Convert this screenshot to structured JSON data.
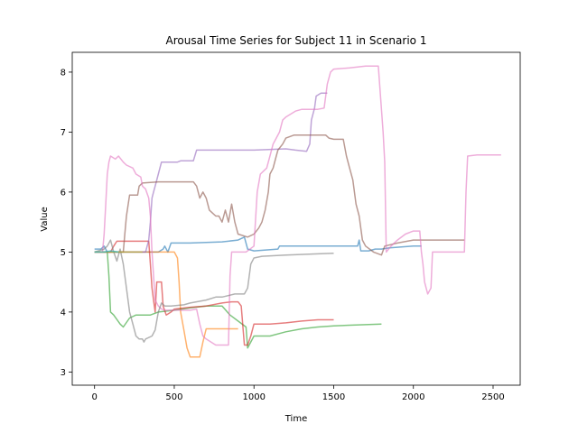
{
  "chart_data": {
    "type": "line",
    "title": "Arousal Time Series for Subject 11 in Scenario 1",
    "xlabel": "Time",
    "ylabel": "Value",
    "xlim": [
      -140,
      2670
    ],
    "ylim": [
      2.78,
      8.33
    ],
    "xticks": [
      0,
      500,
      1000,
      1500,
      2000,
      2500
    ],
    "yticks": [
      3,
      4,
      5,
      6,
      7,
      8
    ],
    "grid": false,
    "legend": "none",
    "series": [
      {
        "color": "#1f77b4",
        "points": [
          [
            0,
            5.05
          ],
          [
            40,
            5.05
          ],
          [
            60,
            5.1
          ],
          [
            80,
            5.0
          ],
          [
            150,
            5.0
          ],
          [
            300,
            5.0
          ],
          [
            400,
            5.0
          ],
          [
            430,
            5.05
          ],
          [
            440,
            5.1
          ],
          [
            460,
            5.0
          ],
          [
            480,
            5.15
          ],
          [
            600,
            5.15
          ],
          [
            800,
            5.17
          ],
          [
            900,
            5.2
          ],
          [
            940,
            5.25
          ],
          [
            960,
            5.05
          ],
          [
            1000,
            5.02
          ],
          [
            1150,
            5.05
          ],
          [
            1160,
            5.1
          ],
          [
            1400,
            5.1
          ],
          [
            1650,
            5.1
          ],
          [
            1660,
            5.2
          ],
          [
            1670,
            5.02
          ],
          [
            1720,
            5.02
          ],
          [
            1760,
            5.05
          ],
          [
            1800,
            5.05
          ],
          [
            1850,
            5.07
          ],
          [
            2000,
            5.1
          ],
          [
            2050,
            5.1
          ]
        ]
      },
      {
        "color": "#ff7f0e",
        "points": [
          [
            0,
            5.0
          ],
          [
            200,
            5.0
          ],
          [
            300,
            5.0
          ],
          [
            500,
            5.0
          ],
          [
            520,
            4.9
          ],
          [
            530,
            4.5
          ],
          [
            540,
            4.0
          ],
          [
            560,
            3.7
          ],
          [
            580,
            3.4
          ],
          [
            600,
            3.25
          ],
          [
            660,
            3.25
          ],
          [
            680,
            3.5
          ],
          [
            700,
            3.72
          ],
          [
            850,
            3.72
          ],
          [
            900,
            3.72
          ]
        ]
      },
      {
        "color": "#2ca02c",
        "points": [
          [
            0,
            5.0
          ],
          [
            80,
            5.0
          ],
          [
            90,
            4.6
          ],
          [
            100,
            4.0
          ],
          [
            120,
            3.95
          ],
          [
            160,
            3.8
          ],
          [
            180,
            3.75
          ],
          [
            220,
            3.9
          ],
          [
            260,
            3.95
          ],
          [
            300,
            3.95
          ],
          [
            350,
            3.95
          ],
          [
            400,
            4.0
          ],
          [
            500,
            4.03
          ],
          [
            600,
            4.07
          ],
          [
            700,
            4.1
          ],
          [
            800,
            4.1
          ],
          [
            850,
            3.95
          ],
          [
            900,
            3.85
          ],
          [
            950,
            3.75
          ],
          [
            960,
            3.4
          ],
          [
            980,
            3.5
          ],
          [
            1000,
            3.6
          ],
          [
            1100,
            3.6
          ],
          [
            1200,
            3.67
          ],
          [
            1300,
            3.72
          ],
          [
            1400,
            3.75
          ],
          [
            1500,
            3.77
          ],
          [
            1600,
            3.78
          ],
          [
            1800,
            3.8
          ]
        ]
      },
      {
        "color": "#d62728",
        "points": [
          [
            0,
            5.0
          ],
          [
            100,
            5.0
          ],
          [
            120,
            5.1
          ],
          [
            140,
            5.18
          ],
          [
            200,
            5.18
          ],
          [
            340,
            5.18
          ],
          [
            350,
            4.8
          ],
          [
            360,
            4.4
          ],
          [
            370,
            4.2
          ],
          [
            380,
            4.0
          ],
          [
            390,
            4.5
          ],
          [
            420,
            4.5
          ],
          [
            430,
            4.1
          ],
          [
            450,
            3.95
          ],
          [
            480,
            4.0
          ],
          [
            500,
            4.05
          ],
          [
            600,
            4.08
          ],
          [
            700,
            4.1
          ],
          [
            800,
            4.15
          ],
          [
            860,
            4.17
          ],
          [
            900,
            4.17
          ],
          [
            920,
            4.1
          ],
          [
            940,
            3.45
          ],
          [
            960,
            3.45
          ],
          [
            980,
            3.6
          ],
          [
            1000,
            3.8
          ],
          [
            1100,
            3.8
          ],
          [
            1200,
            3.82
          ],
          [
            1300,
            3.85
          ],
          [
            1400,
            3.87
          ],
          [
            1500,
            3.87
          ]
        ]
      },
      {
        "color": "#9467bd",
        "points": [
          [
            0,
            5.0
          ],
          [
            200,
            5.0
          ],
          [
            300,
            5.0
          ],
          [
            320,
            5.0
          ],
          [
            340,
            5.2
          ],
          [
            350,
            5.5
          ],
          [
            360,
            5.9
          ],
          [
            370,
            6.0
          ],
          [
            380,
            6.1
          ],
          [
            400,
            6.3
          ],
          [
            420,
            6.5
          ],
          [
            460,
            6.5
          ],
          [
            520,
            6.5
          ],
          [
            540,
            6.52
          ],
          [
            600,
            6.52
          ],
          [
            620,
            6.52
          ],
          [
            640,
            6.7
          ],
          [
            700,
            6.7
          ],
          [
            1000,
            6.7
          ],
          [
            1200,
            6.72
          ],
          [
            1260,
            6.7
          ],
          [
            1330,
            6.68
          ],
          [
            1350,
            6.8
          ],
          [
            1360,
            7.2
          ],
          [
            1380,
            7.4
          ],
          [
            1390,
            7.6
          ],
          [
            1420,
            7.65
          ],
          [
            1460,
            7.65
          ]
        ]
      },
      {
        "color": "#8c564b",
        "points": [
          [
            0,
            5.0
          ],
          [
            150,
            5.0
          ],
          [
            180,
            5.0
          ],
          [
            190,
            5.3
          ],
          [
            200,
            5.6
          ],
          [
            220,
            5.95
          ],
          [
            270,
            5.95
          ],
          [
            280,
            6.1
          ],
          [
            300,
            6.15
          ],
          [
            350,
            6.16
          ],
          [
            400,
            6.17
          ],
          [
            500,
            6.17
          ],
          [
            620,
            6.17
          ],
          [
            640,
            6.1
          ],
          [
            660,
            5.9
          ],
          [
            680,
            6.0
          ],
          [
            700,
            5.9
          ],
          [
            720,
            5.7
          ],
          [
            740,
            5.65
          ],
          [
            760,
            5.6
          ],
          [
            780,
            5.6
          ],
          [
            800,
            5.5
          ],
          [
            820,
            5.7
          ],
          [
            840,
            5.5
          ],
          [
            860,
            5.8
          ],
          [
            880,
            5.5
          ],
          [
            900,
            5.3
          ],
          [
            960,
            5.25
          ],
          [
            1000,
            5.3
          ],
          [
            1030,
            5.4
          ],
          [
            1050,
            5.5
          ],
          [
            1070,
            5.7
          ],
          [
            1090,
            6.0
          ],
          [
            1100,
            6.3
          ],
          [
            1120,
            6.4
          ],
          [
            1140,
            6.6
          ],
          [
            1150,
            6.7
          ],
          [
            1180,
            6.8
          ],
          [
            1200,
            6.9
          ],
          [
            1250,
            6.95
          ],
          [
            1450,
            6.95
          ],
          [
            1470,
            6.9
          ],
          [
            1500,
            6.88
          ],
          [
            1560,
            6.88
          ],
          [
            1580,
            6.6
          ],
          [
            1600,
            6.4
          ],
          [
            1620,
            6.2
          ],
          [
            1640,
            5.8
          ],
          [
            1660,
            5.6
          ],
          [
            1680,
            5.2
          ],
          [
            1700,
            5.1
          ],
          [
            1750,
            5.0
          ],
          [
            1800,
            4.95
          ],
          [
            1820,
            5.1
          ],
          [
            1900,
            5.15
          ],
          [
            2000,
            5.2
          ],
          [
            2100,
            5.2
          ],
          [
            2320,
            5.2
          ]
        ]
      },
      {
        "color": "#e377c2",
        "points": [
          [
            0,
            5.0
          ],
          [
            50,
            5.0
          ],
          [
            60,
            5.3
          ],
          [
            70,
            5.8
          ],
          [
            80,
            6.3
          ],
          [
            90,
            6.5
          ],
          [
            100,
            6.6
          ],
          [
            130,
            6.55
          ],
          [
            150,
            6.6
          ],
          [
            180,
            6.5
          ],
          [
            200,
            6.45
          ],
          [
            240,
            6.4
          ],
          [
            260,
            6.3
          ],
          [
            290,
            6.25
          ],
          [
            300,
            6.1
          ],
          [
            320,
            6.05
          ],
          [
            340,
            5.9
          ],
          [
            350,
            5.6
          ],
          [
            360,
            5.0
          ],
          [
            380,
            4.2
          ],
          [
            400,
            4.1
          ],
          [
            420,
            4.05
          ],
          [
            440,
            4.03
          ],
          [
            500,
            4.03
          ],
          [
            600,
            4.03
          ],
          [
            640,
            4.05
          ],
          [
            660,
            3.8
          ],
          [
            680,
            3.6
          ],
          [
            700,
            3.55
          ],
          [
            760,
            3.45
          ],
          [
            840,
            3.45
          ],
          [
            850,
            4.6
          ],
          [
            860,
            5.0
          ],
          [
            950,
            5.0
          ],
          [
            1000,
            5.1
          ],
          [
            1020,
            6.0
          ],
          [
            1040,
            6.3
          ],
          [
            1080,
            6.4
          ],
          [
            1100,
            6.6
          ],
          [
            1120,
            6.8
          ],
          [
            1140,
            6.9
          ],
          [
            1160,
            7.0
          ],
          [
            1180,
            7.2
          ],
          [
            1200,
            7.25
          ],
          [
            1260,
            7.35
          ],
          [
            1300,
            7.38
          ],
          [
            1400,
            7.38
          ],
          [
            1440,
            7.4
          ],
          [
            1460,
            7.8
          ],
          [
            1480,
            8.0
          ],
          [
            1500,
            8.05
          ],
          [
            1600,
            8.07
          ],
          [
            1700,
            8.1
          ],
          [
            1780,
            8.1
          ],
          [
            1810,
            7.0
          ],
          [
            1820,
            6.5
          ],
          [
            1830,
            5.0
          ],
          [
            1860,
            5.1
          ],
          [
            1900,
            5.2
          ],
          [
            1950,
            5.3
          ],
          [
            2000,
            5.35
          ],
          [
            2040,
            5.35
          ],
          [
            2050,
            5.0
          ],
          [
            2060,
            4.8
          ],
          [
            2070,
            4.5
          ],
          [
            2090,
            4.3
          ],
          [
            2110,
            4.4
          ],
          [
            2120,
            5.0
          ],
          [
            2150,
            5.0
          ],
          [
            2200,
            5.0
          ],
          [
            2300,
            5.0
          ],
          [
            2320,
            5.0
          ],
          [
            2330,
            6.0
          ],
          [
            2340,
            6.6
          ],
          [
            2400,
            6.62
          ],
          [
            2450,
            6.62
          ],
          [
            2550,
            6.62
          ]
        ]
      },
      {
        "color": "#7f7f7f",
        "points": [
          [
            0,
            5.0
          ],
          [
            60,
            5.05
          ],
          [
            80,
            5.1
          ],
          [
            100,
            5.2
          ],
          [
            120,
            5.0
          ],
          [
            140,
            4.85
          ],
          [
            160,
            5.05
          ],
          [
            180,
            4.8
          ],
          [
            200,
            4.4
          ],
          [
            220,
            4.0
          ],
          [
            240,
            3.8
          ],
          [
            260,
            3.6
          ],
          [
            280,
            3.55
          ],
          [
            300,
            3.55
          ],
          [
            310,
            3.5
          ],
          [
            320,
            3.55
          ],
          [
            360,
            3.6
          ],
          [
            380,
            3.7
          ],
          [
            400,
            4.0
          ],
          [
            420,
            4.15
          ],
          [
            440,
            4.1
          ],
          [
            480,
            4.1
          ],
          [
            560,
            4.12
          ],
          [
            600,
            4.15
          ],
          [
            700,
            4.2
          ],
          [
            760,
            4.25
          ],
          [
            800,
            4.25
          ],
          [
            880,
            4.3
          ],
          [
            940,
            4.3
          ],
          [
            960,
            4.4
          ],
          [
            980,
            4.8
          ],
          [
            1000,
            4.9
          ],
          [
            1050,
            4.93
          ],
          [
            1200,
            4.95
          ],
          [
            1400,
            4.97
          ],
          [
            1500,
            4.98
          ]
        ]
      },
      {
        "color": "#bcbd22",
        "points": [
          [
            0,
            5.0
          ],
          [
            100,
            5.0
          ],
          [
            200,
            5.0
          ],
          [
            300,
            5.0
          ]
        ]
      },
      {
        "color": "#17becf",
        "points": [
          [
            0,
            5.0
          ],
          [
            60,
            5.0
          ],
          [
            100,
            5.02
          ],
          [
            150,
            5.0
          ]
        ]
      }
    ]
  }
}
